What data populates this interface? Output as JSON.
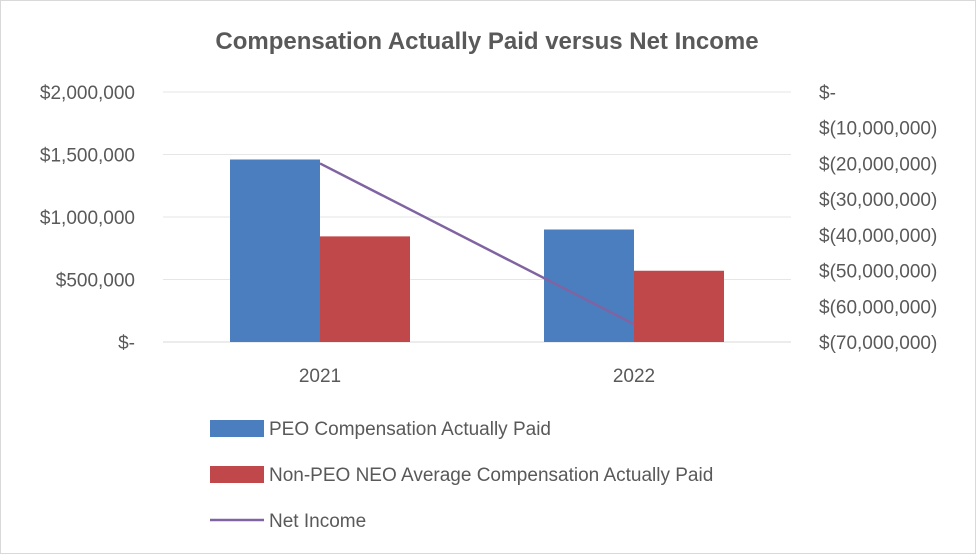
{
  "chart_data": {
    "type": "bar",
    "title": "Compensation Actually Paid versus Net Income",
    "categories": [
      "2021",
      "2022"
    ],
    "series": [
      {
        "name": "PEO Compensation Actually Paid",
        "kind": "bar",
        "axis": "left",
        "color": "#4a7ebf",
        "values": [
          1460000,
          900000
        ]
      },
      {
        "name": "Non-PEO NEO Average Compensation Actually Paid",
        "kind": "bar",
        "axis": "left",
        "color": "#c0474a",
        "values": [
          845000,
          570000
        ]
      },
      {
        "name": "Net Income",
        "kind": "line",
        "axis": "right",
        "color": "#8064a2",
        "values": [
          -20000000,
          -65000000
        ]
      }
    ],
    "y_left": {
      "ylim": [
        0,
        2000000
      ],
      "ticks": [
        0,
        500000,
        1000000,
        1500000,
        2000000
      ],
      "tick_labels": [
        "$-",
        "$500,000",
        "$1,000,000",
        "$1,500,000",
        "$2,000,000"
      ]
    },
    "y_right": {
      "ylim": [
        -70000000,
        0
      ],
      "ticks": [
        0,
        -10000000,
        -20000000,
        -30000000,
        -40000000,
        -50000000,
        -60000000,
        -70000000
      ],
      "tick_labels": [
        "$-",
        "$(10,000,000)",
        "$(20,000,000)",
        "$(30,000,000)",
        "$(40,000,000)",
        "$(50,000,000)",
        "$(60,000,000)",
        "$(70,000,000)"
      ]
    },
    "grid": true,
    "legend_position": "bottom"
  }
}
